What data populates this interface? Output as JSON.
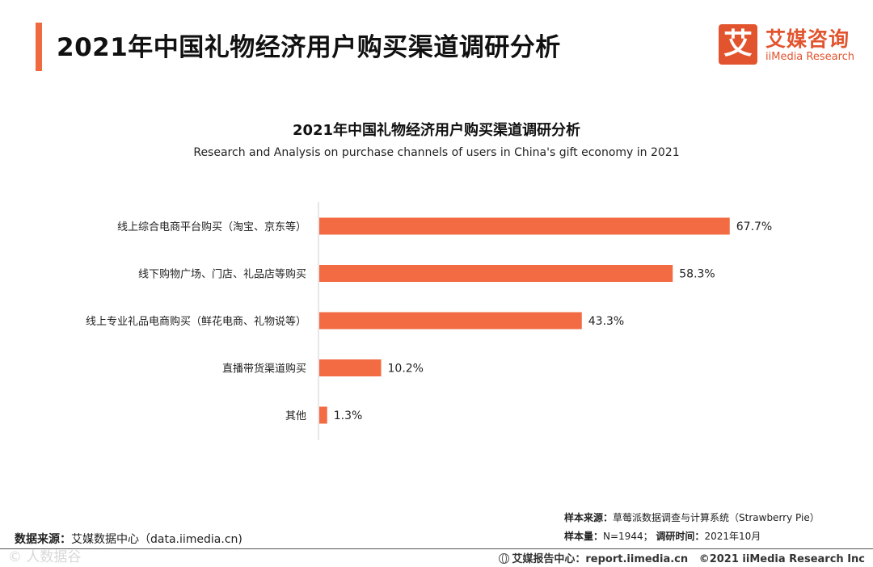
{
  "header": {
    "title": "2021年中国礼物经济用户购买渠道调研分析"
  },
  "logo": {
    "mark": "艾",
    "name_cn": "艾媒咨询",
    "name_en": "iiMedia Research"
  },
  "chart_data": {
    "type": "bar",
    "orientation": "horizontal",
    "title": "2021年中国礼物经济用户购买渠道调研分析",
    "subtitle": "Research and Analysis on purchase channels of users in China's gift economy in 2021",
    "categories": [
      "线上综合电商平台购买（淘宝、京东等）",
      "线下购物广场、门店、礼品店等购买",
      "线上专业礼品电商购买（鲜花电商、礼物说等）",
      "直播带货渠道购买",
      "其他"
    ],
    "values": [
      67.7,
      58.3,
      43.3,
      10.2,
      1.3
    ],
    "value_labels": [
      "67.7%",
      "58.3%",
      "43.3%",
      "10.2%",
      "1.3%"
    ],
    "unit": "%",
    "bar_color": "#f26b43",
    "xlim": [
      0,
      70
    ],
    "grid": false,
    "legend": "none"
  },
  "footer": {
    "source_key": "数据来源：",
    "source_val": "艾媒数据中心（data.iimedia.cn)",
    "sample_source_key": "样本来源：",
    "sample_source_val": "草莓派数据调查与计算系统（Strawberry Pie）",
    "sample_size_key": "样本量：",
    "sample_size_val": "N=1944；",
    "survey_time_key": "调研时间：",
    "survey_time_val": "2021年10月",
    "report_center": "艾媒报告中心：report.iimedia.cn",
    "copyright": "©2021  iiMedia Research  Inc",
    "watermark": "© 人数据谷"
  },
  "colors": {
    "accent": "#ef6b3f",
    "brand": "#e2542e"
  }
}
